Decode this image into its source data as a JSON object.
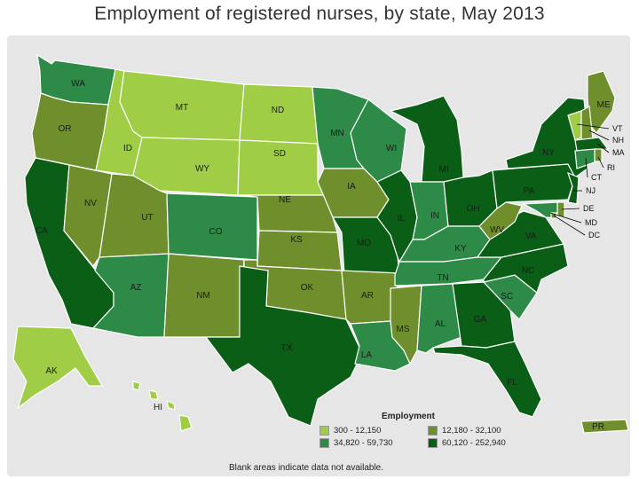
{
  "title": "Employment of registered nurses, by state, May 2013",
  "colors": {
    "c1": "#9fcd45",
    "c2": "#6f8f2c",
    "c3": "#2e8b47",
    "c4": "#0a5e16",
    "background": "#e6e6e6"
  },
  "legend": {
    "title": "Employment",
    "items": [
      {
        "label": "300 - 12,150",
        "color": "#9fcd45"
      },
      {
        "label": "12,180 - 32,100",
        "color": "#6f8f2c"
      },
      {
        "label": "34,820 - 59,730",
        "color": "#2e8b47"
      },
      {
        "label": "60,120 - 252,940",
        "color": "#0a5e16"
      }
    ]
  },
  "footnote": "Blank areas indicate data not available.",
  "states": [
    {
      "abbr": "WA",
      "bin": "c3"
    },
    {
      "abbr": "OR",
      "bin": "c2"
    },
    {
      "abbr": "CA",
      "bin": "c4"
    },
    {
      "abbr": "NV",
      "bin": "c2"
    },
    {
      "abbr": "ID",
      "bin": "c1"
    },
    {
      "abbr": "MT",
      "bin": "c1"
    },
    {
      "abbr": "WY",
      "bin": "c1"
    },
    {
      "abbr": "UT",
      "bin": "c2"
    },
    {
      "abbr": "AZ",
      "bin": "c3"
    },
    {
      "abbr": "CO",
      "bin": "c3"
    },
    {
      "abbr": "NM",
      "bin": "c2"
    },
    {
      "abbr": "ND",
      "bin": "c1"
    },
    {
      "abbr": "SD",
      "bin": "c1"
    },
    {
      "abbr": "NE",
      "bin": "c2"
    },
    {
      "abbr": "KS",
      "bin": "c2"
    },
    {
      "abbr": "OK",
      "bin": "c2"
    },
    {
      "abbr": "TX",
      "bin": "c4"
    },
    {
      "abbr": "MN",
      "bin": "c3"
    },
    {
      "abbr": "IA",
      "bin": "c2"
    },
    {
      "abbr": "MO",
      "bin": "c4"
    },
    {
      "abbr": "AR",
      "bin": "c2"
    },
    {
      "abbr": "LA",
      "bin": "c3"
    },
    {
      "abbr": "WI",
      "bin": "c3"
    },
    {
      "abbr": "IL",
      "bin": "c4"
    },
    {
      "abbr": "MI",
      "bin": "c4"
    },
    {
      "abbr": "IN",
      "bin": "c3"
    },
    {
      "abbr": "OH",
      "bin": "c4"
    },
    {
      "abbr": "KY",
      "bin": "c3"
    },
    {
      "abbr": "TN",
      "bin": "c3"
    },
    {
      "abbr": "MS",
      "bin": "c2"
    },
    {
      "abbr": "AL",
      "bin": "c3"
    },
    {
      "abbr": "GA",
      "bin": "c4"
    },
    {
      "abbr": "FL",
      "bin": "c4"
    },
    {
      "abbr": "SC",
      "bin": "c3"
    },
    {
      "abbr": "NC",
      "bin": "c4"
    },
    {
      "abbr": "VA",
      "bin": "c4"
    },
    {
      "abbr": "WV",
      "bin": "c2"
    },
    {
      "abbr": "PA",
      "bin": "c4"
    },
    {
      "abbr": "NY",
      "bin": "c4"
    },
    {
      "abbr": "ME",
      "bin": "c2"
    },
    {
      "abbr": "VT",
      "bin": "c1"
    },
    {
      "abbr": "NH",
      "bin": "c2"
    },
    {
      "abbr": "MA",
      "bin": "c4"
    },
    {
      "abbr": "RI",
      "bin": "c2"
    },
    {
      "abbr": "CT",
      "bin": "c3"
    },
    {
      "abbr": "NJ",
      "bin": "c4"
    },
    {
      "abbr": "DE",
      "bin": "c2"
    },
    {
      "abbr": "MD",
      "bin": "c3"
    },
    {
      "abbr": "DC",
      "bin": "c2"
    },
    {
      "abbr": "AK",
      "bin": "c1"
    },
    {
      "abbr": "HI",
      "bin": "c1"
    },
    {
      "abbr": "PR",
      "bin": "c2"
    }
  ]
}
